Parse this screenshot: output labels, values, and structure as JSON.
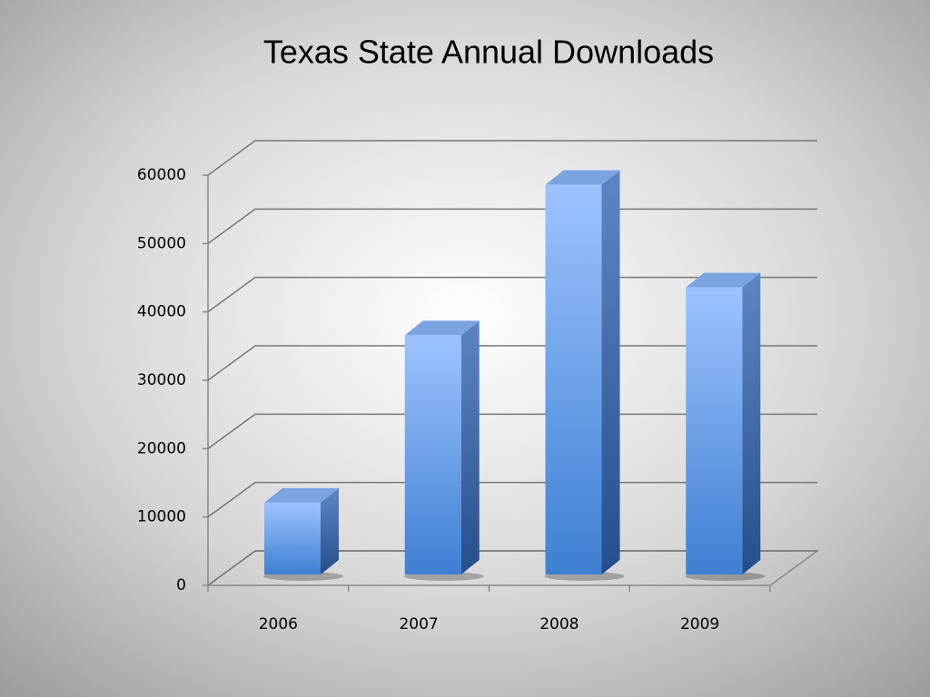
{
  "chart_data": {
    "type": "bar",
    "title": "Texas State Annual Downloads",
    "categories": [
      "2006",
      "2007",
      "2008",
      "2009"
    ],
    "values": [
      10500,
      35000,
      57000,
      42000
    ],
    "color": "#4a86d8",
    "ylim": [
      0,
      60000
    ],
    "yticks": [
      0,
      10000,
      20000,
      30000,
      40000,
      50000,
      60000
    ],
    "grid": true
  }
}
